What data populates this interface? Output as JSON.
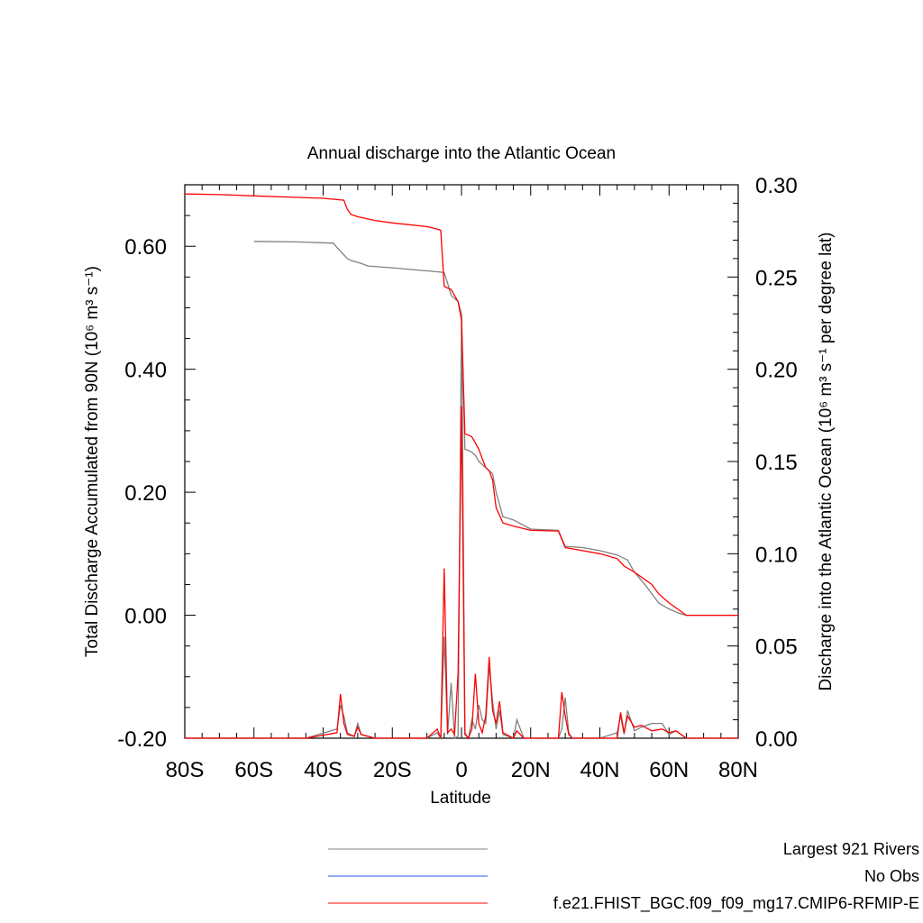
{
  "chart_data": {
    "type": "line",
    "title": "Annual discharge into the Atlantic Ocean",
    "xlabel": "Latitude",
    "ylabel_left": "Total Discharge Accumulated from 90N (10⁶ m³ s⁻¹)",
    "ylabel_right": "Discharge into the Atlantic Ocean (10⁶ m³ s⁻¹ per degree lat)",
    "xlim": [
      -80,
      80
    ],
    "ylim_left": [
      -0.2,
      0.7
    ],
    "ylim_right": [
      0.0,
      0.3
    ],
    "x_ticks": [
      -80,
      -60,
      -40,
      -20,
      0,
      20,
      40,
      60,
      80
    ],
    "x_tick_labels": [
      "80S",
      "60S",
      "40S",
      "20S",
      "0",
      "20N",
      "40N",
      "60N",
      "80N"
    ],
    "y_left_ticks": [
      -0.2,
      0.0,
      0.2,
      0.4,
      0.6
    ],
    "y_left_tick_labels": [
      "-0.20",
      "0.00",
      "0.20",
      "0.40",
      "0.60"
    ],
    "y_right_ticks": [
      0.0,
      0.05,
      0.1,
      0.15,
      0.2,
      0.25,
      0.3
    ],
    "y_right_tick_labels": [
      "0.00",
      "0.05",
      "0.10",
      "0.15",
      "0.20",
      "0.25",
      "0.30"
    ],
    "series": [
      {
        "name": "Largest 921 Rivers",
        "color": "#808080",
        "axis": "left",
        "x": [
          -60,
          -47,
          -37,
          -36,
          -33,
          -32,
          -29,
          -27,
          -20,
          -10,
          -6,
          -5,
          -4,
          -3,
          -2,
          -1,
          0,
          1,
          2,
          3,
          4,
          5,
          6,
          7,
          8,
          9,
          10,
          12,
          15,
          20,
          28,
          30,
          35,
          40,
          45,
          48,
          50,
          53,
          57,
          60,
          63,
          65,
          70,
          75,
          80
        ],
        "y": [
          0.608,
          0.607,
          0.605,
          0.598,
          0.58,
          0.577,
          0.572,
          0.568,
          0.565,
          0.56,
          0.558,
          0.557,
          0.54,
          0.52,
          0.515,
          0.51,
          0.49,
          0.27,
          0.268,
          0.265,
          0.26,
          0.25,
          0.245,
          0.24,
          0.235,
          0.23,
          0.2,
          0.16,
          0.155,
          0.14,
          0.138,
          0.112,
          0.11,
          0.105,
          0.098,
          0.09,
          0.07,
          0.05,
          0.02,
          0.01,
          0.003,
          0.0,
          0.0,
          0.0,
          0.0
        ]
      },
      {
        "name": "No Obs",
        "color": "#3050ff",
        "axis": "left",
        "x": [],
        "y": []
      },
      {
        "name": "f.e21.FHIST_BGC.f09_f09_mg17.CMIP6-RFMIP-E",
        "color": "#ff0000",
        "axis": "left",
        "x": [
          -80,
          -70,
          -60,
          -50,
          -40,
          -34,
          -33,
          -32,
          -30,
          -25,
          -20,
          -10,
          -7,
          -6,
          -5,
          -4,
          -3,
          -2,
          -1,
          0,
          1,
          2,
          3,
          4,
          5,
          6,
          7,
          8,
          9,
          10,
          12,
          15,
          20,
          28,
          30,
          35,
          40,
          45,
          47,
          50,
          55,
          57,
          60,
          63,
          65,
          70,
          75,
          80
        ],
        "y": [
          0.685,
          0.684,
          0.682,
          0.68,
          0.678,
          0.675,
          0.66,
          0.652,
          0.648,
          0.642,
          0.638,
          0.632,
          0.628,
          0.626,
          0.535,
          0.532,
          0.53,
          0.52,
          0.51,
          0.48,
          0.295,
          0.293,
          0.29,
          0.28,
          0.27,
          0.255,
          0.24,
          0.235,
          0.22,
          0.175,
          0.15,
          0.145,
          0.138,
          0.137,
          0.11,
          0.105,
          0.1,
          0.092,
          0.08,
          0.07,
          0.05,
          0.035,
          0.02,
          0.008,
          0.0,
          0.0,
          0.0,
          0.0
        ]
      }
    ],
    "right_axis_series": [
      {
        "name": "Largest 921 Rivers",
        "color": "#808080",
        "x": [
          -80,
          -45,
          -36,
          -35,
          -34,
          -33,
          -31,
          -30,
          -29,
          -25,
          -10,
          -7,
          -6,
          -5,
          -4,
          -3,
          -2,
          -1,
          0,
          1,
          2,
          3,
          4,
          5,
          6,
          7,
          8,
          9,
          10,
          11,
          12,
          15,
          16,
          18,
          28,
          29,
          30,
          31,
          32,
          40,
          45,
          46,
          47,
          48,
          50,
          52,
          55,
          58,
          60,
          62,
          65,
          80
        ],
        "y": [
          0.0,
          0.0,
          0.005,
          0.018,
          0.012,
          0.003,
          0.001,
          0.008,
          0.002,
          0.0,
          0.0,
          0.003,
          0.0,
          0.055,
          0.002,
          0.03,
          0.0,
          0.001,
          0.23,
          0.003,
          0.0,
          0.01,
          0.005,
          0.018,
          0.01,
          0.008,
          0.04,
          0.02,
          0.005,
          0.015,
          0.002,
          0.0,
          0.01,
          0.0,
          0.0,
          0.005,
          0.022,
          0.003,
          0.0,
          0.0,
          0.003,
          0.012,
          0.002,
          0.015,
          0.004,
          0.006,
          0.008,
          0.008,
          0.002,
          0.004,
          0.0,
          0.0
        ]
      },
      {
        "name": "f.e21.FHIST_BGC.f09_f09_mg17.CMIP6-RFMIP-E",
        "color": "#ff0000",
        "x": [
          -80,
          -45,
          -36,
          -35,
          -34,
          -33,
          -31,
          -30,
          -29,
          -25,
          -10,
          -7,
          -6,
          -5,
          -4,
          -3,
          -2,
          -1,
          0,
          1,
          2,
          3,
          4,
          5,
          6,
          7,
          8,
          9,
          10,
          11,
          12,
          15,
          16,
          18,
          28,
          29,
          30,
          31,
          32,
          40,
          45,
          46,
          47,
          48,
          50,
          52,
          55,
          58,
          60,
          62,
          65,
          80
        ],
        "y": [
          0.0,
          0.0,
          0.003,
          0.024,
          0.008,
          0.002,
          0.001,
          0.006,
          0.002,
          0.0,
          0.0,
          0.005,
          0.0,
          0.092,
          0.003,
          0.005,
          0.002,
          0.035,
          0.18,
          0.002,
          0.0,
          0.005,
          0.035,
          0.008,
          0.003,
          0.012,
          0.044,
          0.015,
          0.008,
          0.02,
          0.003,
          0.0,
          0.004,
          0.0,
          0.0,
          0.025,
          0.012,
          0.002,
          0.0,
          0.0,
          0.0,
          0.014,
          0.003,
          0.012,
          0.006,
          0.007,
          0.004,
          0.005,
          0.003,
          0.004,
          0.0,
          0.0
        ]
      }
    ],
    "legend_position": "bottom-right"
  }
}
